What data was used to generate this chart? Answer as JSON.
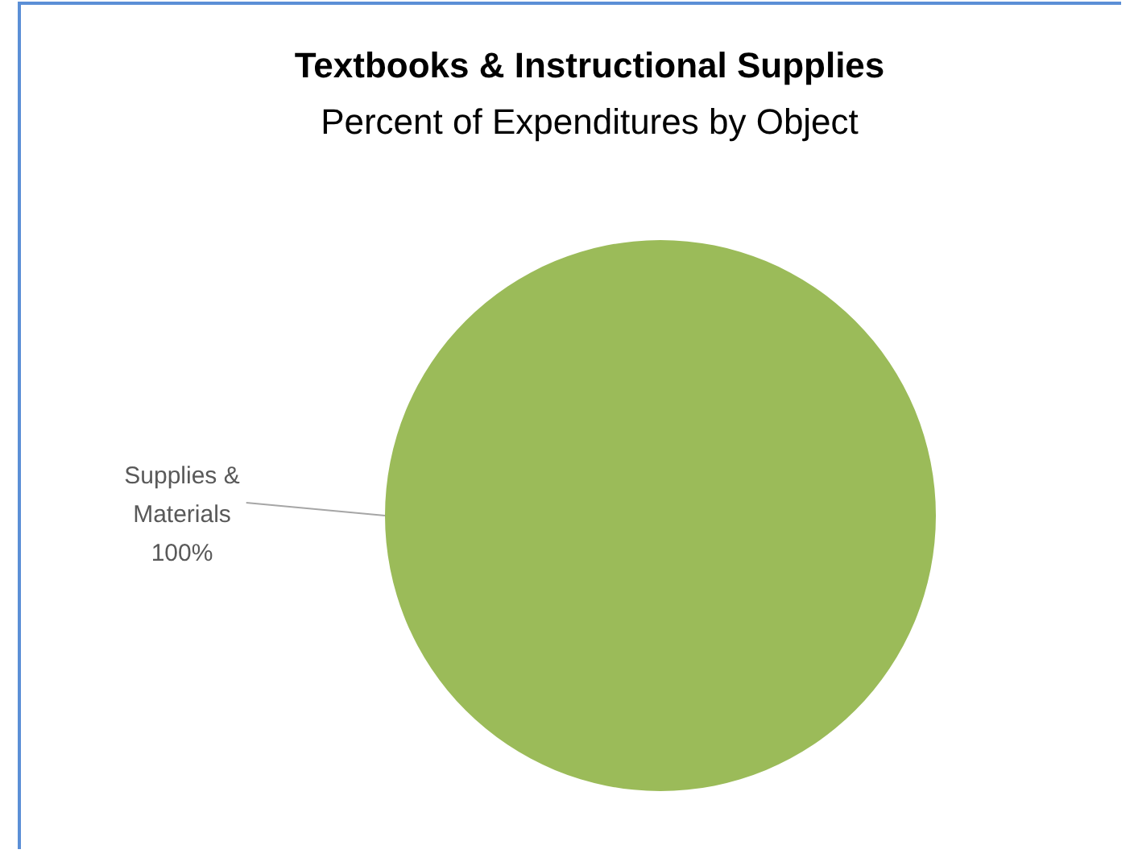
{
  "chart_data": {
    "type": "pie",
    "title": "Textbooks & Instructional Supplies",
    "subtitle": "Percent of Expenditures by Object",
    "categories": [
      "Supplies & Materials"
    ],
    "values": [
      100
    ],
    "colors": [
      "#9bbb59"
    ],
    "value_labels": [
      "100%"
    ]
  }
}
